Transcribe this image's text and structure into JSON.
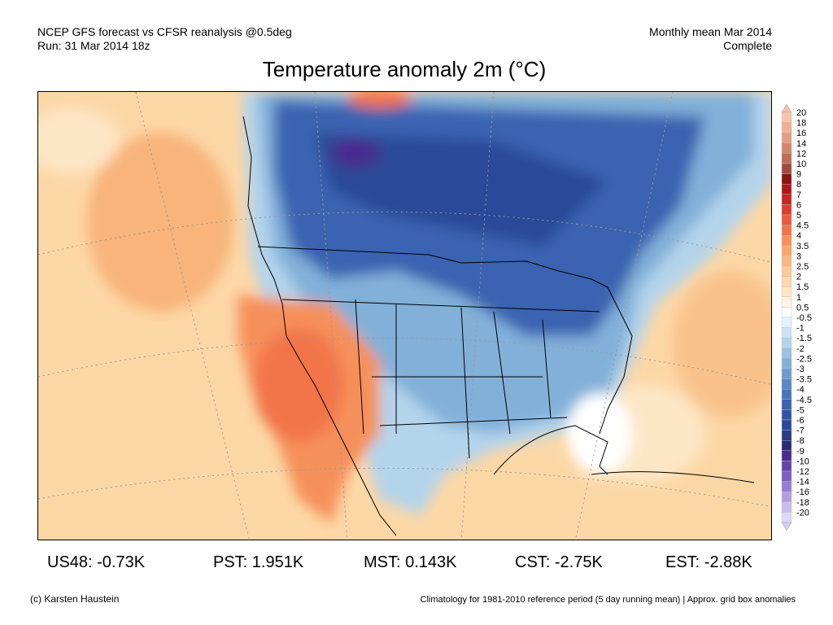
{
  "header": {
    "left_line1": "NCEP GFS forecast vs CFSR reanalysis @0.5deg",
    "left_line2": "Run: 31 Mar 2014 18z",
    "right_line1": "Monthly mean Mar 2014",
    "right_line2": "Complete"
  },
  "title": "Temperature anomaly 2m (°C)",
  "legend": {
    "top_color": "#f6bfa6",
    "bottom_color": "#d8ccf4",
    "bins": [
      {
        "label": "20",
        "color": "#f6c4aa"
      },
      {
        "label": "18",
        "color": "#efb194"
      },
      {
        "label": "16",
        "color": "#e59d80"
      },
      {
        "label": "14",
        "color": "#d4876a"
      },
      {
        "label": "12",
        "color": "#bf6d55"
      },
      {
        "label": "10",
        "color": "#a14a3c"
      },
      {
        "label": "9",
        "color": "#8c1414"
      },
      {
        "label": "8",
        "color": "#b01818"
      },
      {
        "label": "7",
        "color": "#c92424"
      },
      {
        "label": "6",
        "color": "#de3a2e"
      },
      {
        "label": "5",
        "color": "#ec5a3c"
      },
      {
        "label": "4.5",
        "color": "#f27548"
      },
      {
        "label": "4",
        "color": "#f6905a"
      },
      {
        "label": "3.5",
        "color": "#f8a66c"
      },
      {
        "label": "3",
        "color": "#fab980"
      },
      {
        "label": "2.5",
        "color": "#fcca96"
      },
      {
        "label": "2",
        "color": "#fdd9ad"
      },
      {
        "label": "1.5",
        "color": "#fde6c6"
      },
      {
        "label": "1",
        "color": "#fff4e2"
      },
      {
        "label": "0.5",
        "color": "#ffffff"
      },
      {
        "label": "-0.5",
        "color": "#e6f2fb"
      },
      {
        "label": "-1",
        "color": "#cde4f4"
      },
      {
        "label": "-1.5",
        "color": "#b4d4ec"
      },
      {
        "label": "-2",
        "color": "#9ac3e3"
      },
      {
        "label": "-2.5",
        "color": "#82b0d9"
      },
      {
        "label": "-3",
        "color": "#6b9ccf"
      },
      {
        "label": "-3.5",
        "color": "#5888c5"
      },
      {
        "label": "-4",
        "color": "#4776bb"
      },
      {
        "label": "-4.5",
        "color": "#3a64b1"
      },
      {
        "label": "-5",
        "color": "#3055a6"
      },
      {
        "label": "-6",
        "color": "#2a4898"
      },
      {
        "label": "-7",
        "color": "#263a88"
      },
      {
        "label": "-8",
        "color": "#2a2c78"
      },
      {
        "label": "-9",
        "color": "#4a2c90"
      },
      {
        "label": "-10",
        "color": "#6642aa"
      },
      {
        "label": "-12",
        "color": "#7f5ec0"
      },
      {
        "label": "-14",
        "color": "#987cd2"
      },
      {
        "label": "-16",
        "color": "#b39ce2"
      },
      {
        "label": "-18",
        "color": "#cbbcef"
      },
      {
        "label": "-20",
        "color": "#e0d8f8"
      }
    ]
  },
  "stats": [
    {
      "text": "US48: -0.73K"
    },
    {
      "text": "PST: 1.951K"
    },
    {
      "text": "MST: 0.143K"
    },
    {
      "text": "CST: -2.75K"
    },
    {
      "text": "EST: -2.88K"
    }
  ],
  "footer": {
    "left": "(c) Karsten Haustein",
    "right": "Climatology for 1981-2010 reference period (5 day running mean) | Approx. grid box anomalies"
  }
}
